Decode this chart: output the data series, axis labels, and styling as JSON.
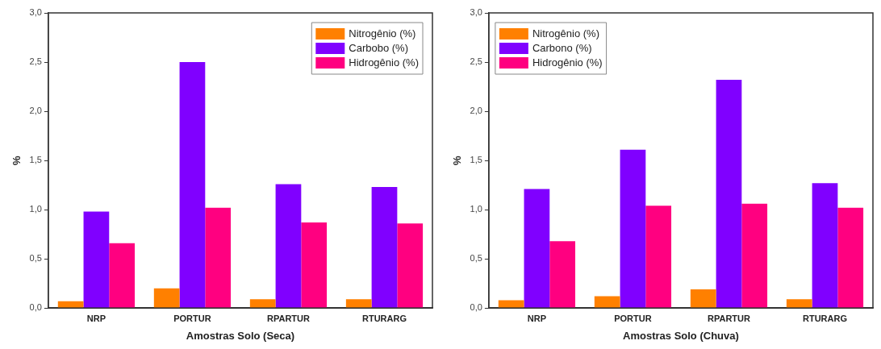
{
  "chart_data": [
    {
      "type": "bar",
      "xlabel": "Amostras Solo (Seca)",
      "ylabel": "%",
      "categories": [
        "NRP",
        "PORTUR",
        "RPARTUR",
        "RTURARG"
      ],
      "series": [
        {
          "name": "Nitrogênio (%)",
          "color": "#ff8000",
          "values": [
            0.07,
            0.2,
            0.09,
            0.09
          ]
        },
        {
          "name": "Carbobo (%)",
          "color": "#8000ff",
          "values": [
            0.98,
            2.5,
            1.26,
            1.23
          ]
        },
        {
          "name": "Hidrogênio (%)",
          "color": "#ff0080",
          "values": [
            0.66,
            1.02,
            0.87,
            0.86
          ]
        }
      ],
      "ylim": [
        0,
        3
      ],
      "yticks": [
        {
          "value": 0,
          "label": "0,0"
        },
        {
          "value": 0.5,
          "label": "0,5"
        },
        {
          "value": 1,
          "label": "1,0"
        },
        {
          "value": 1.5,
          "label": "1,5"
        },
        {
          "value": 2,
          "label": "2,0"
        },
        {
          "value": 2.5,
          "label": "2,5"
        },
        {
          "value": 3,
          "label": "3,0"
        }
      ],
      "grid": false,
      "legend": "top right"
    },
    {
      "type": "bar",
      "xlabel": "Amostras Solo (Chuva)",
      "ylabel": "%",
      "categories": [
        "NRP",
        "PORTUR",
        "RPARTUR",
        "RTURARG"
      ],
      "series": [
        {
          "name": "Nitrogênio (%)",
          "color": "#ff8000",
          "values": [
            0.08,
            0.12,
            0.19,
            0.09
          ]
        },
        {
          "name": "Carbono (%)",
          "color": "#8000ff",
          "values": [
            1.21,
            1.61,
            2.32,
            1.27
          ]
        },
        {
          "name": "Hidrogênio (%)",
          "color": "#ff0080",
          "values": [
            0.68,
            1.04,
            1.06,
            1.02
          ]
        }
      ],
      "ylim": [
        0,
        3
      ],
      "yticks": [
        {
          "value": 0,
          "label": "0,0"
        },
        {
          "value": 0.5,
          "label": "0,5"
        },
        {
          "value": 1,
          "label": "1,0"
        },
        {
          "value": 1.5,
          "label": "1,5"
        },
        {
          "value": 2,
          "label": "2,0"
        },
        {
          "value": 2.5,
          "label": "2,5"
        },
        {
          "value": 3,
          "label": "3,0"
        }
      ],
      "grid": false,
      "legend": "top left"
    }
  ]
}
